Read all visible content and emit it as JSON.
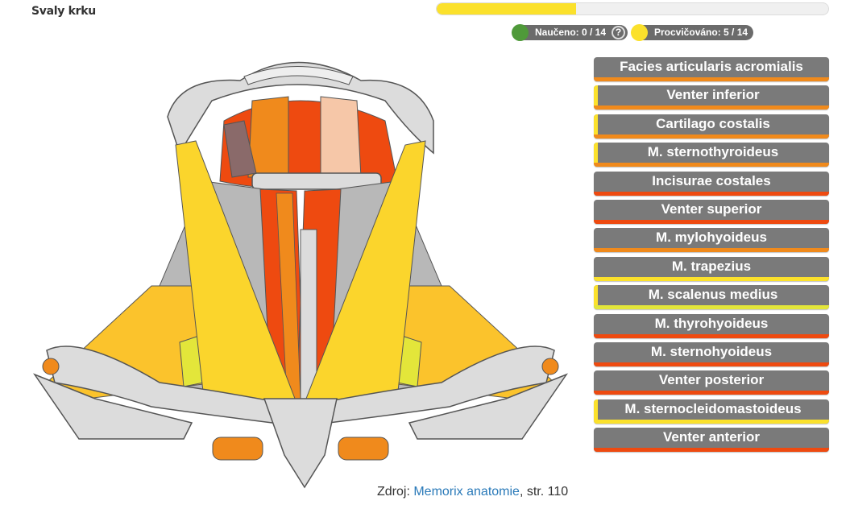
{
  "page": {
    "title": "Svaly krku"
  },
  "progress": {
    "fraction": 0.356,
    "color": "#fbe12c"
  },
  "stats": {
    "learned": {
      "text": "Naučeno: 0 / 14",
      "color": "#4f9a3a"
    },
    "practiced": {
      "text": "Procvičováno: 5 / 14",
      "color": "#fbe12c"
    },
    "help_label": "?"
  },
  "options": [
    {
      "label": "Facies articularis acromialis",
      "bar_color": "#f08a1c",
      "side": false
    },
    {
      "label": "Venter inferior",
      "bar_color": "#f08a1c",
      "side": true
    },
    {
      "label": "Cartilago costalis",
      "bar_color": "#f08a1c",
      "side": true
    },
    {
      "label": "M. sternothyroideus",
      "bar_color": "#f08a1c",
      "side": true
    },
    {
      "label": "Incisurae costales",
      "bar_color": "#ee4a10",
      "side": false
    },
    {
      "label": "Venter superior",
      "bar_color": "#ee4a10",
      "side": false
    },
    {
      "label": "M. mylohyoideus",
      "bar_color": "#f08a1c",
      "side": false
    },
    {
      "label": "M. trapezius",
      "bar_color": "#fbe12c",
      "side": false
    },
    {
      "label": "M. scalenus medius",
      "bar_color": "#e3e63a",
      "side": true
    },
    {
      "label": "M. thyrohyoideus",
      "bar_color": "#ee4a10",
      "side": false
    },
    {
      "label": "M. sternohyoideus",
      "bar_color": "#ee4a10",
      "side": false
    },
    {
      "label": "Venter posterior",
      "bar_color": "#ee4a10",
      "side": false
    },
    {
      "label": "M. sternocleidomastoideus",
      "bar_color": "#fbe12c",
      "side": true
    },
    {
      "label": "Venter anterior",
      "bar_color": "#ee4a10",
      "side": false
    }
  ],
  "source": {
    "prefix": "Zdroj: ",
    "link_text": "Memorix anatomie",
    "suffix": ", str. 110"
  },
  "colors": {
    "bone": "#dcdcdc",
    "bone_outline": "#555555",
    "muscle_gray": "#b8b8b8",
    "muscle_red": "#ee4a10",
    "muscle_orange": "#f08a1c",
    "muscle_yellow": "#fbd52c",
    "muscle_yellow_light": "#e3e63a"
  }
}
